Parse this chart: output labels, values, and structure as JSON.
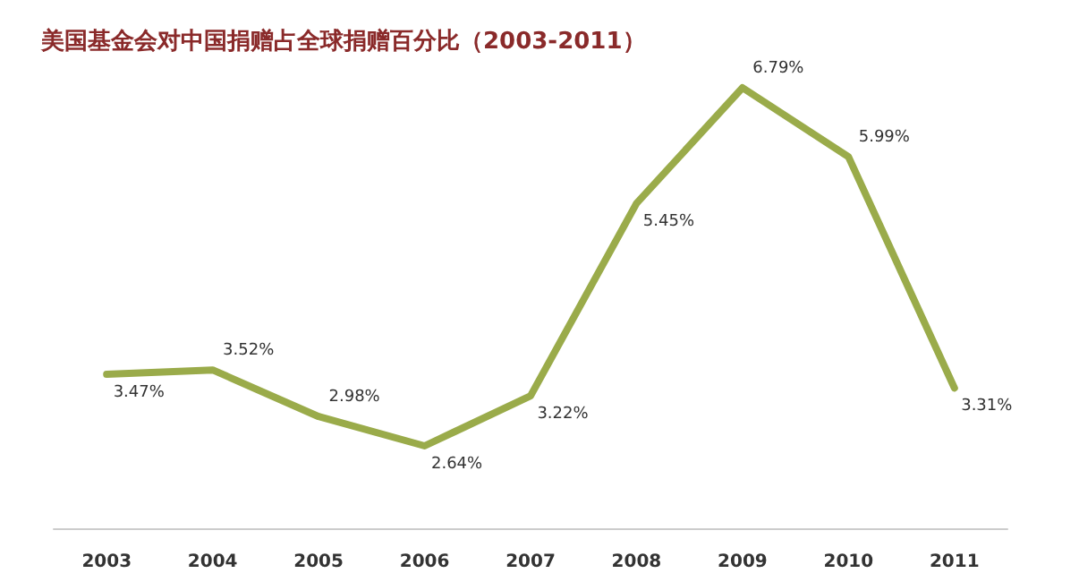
{
  "chart_data": {
    "type": "line",
    "title": "美国基金会对中国捐赠占全球捐赠百分比（2003-2011）",
    "categories": [
      "2003",
      "2004",
      "2005",
      "2006",
      "2007",
      "2008",
      "2009",
      "2010",
      "2011"
    ],
    "series": [
      {
        "color": "#9aab4a",
        "values": [
          3.47,
          3.52,
          2.98,
          2.64,
          3.22,
          5.45,
          6.79,
          5.99,
          3.31
        ],
        "value_labels": [
          "3.47%",
          "3.52%",
          "2.98%",
          "2.64%",
          "3.22%",
          "5.45%",
          "6.79%",
          "5.99%",
          "3.31%"
        ]
      }
    ],
    "marker": "none",
    "line_style": "solid",
    "grid": false,
    "tick_labels": "x"
  }
}
